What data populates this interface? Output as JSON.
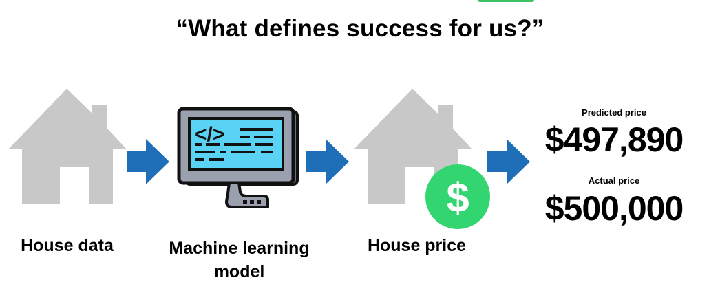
{
  "title": "“What defines success for us?”",
  "steps": [
    {
      "label": "House data",
      "icon": "house-icon"
    },
    {
      "label_line1": "Machine learning",
      "label_line2": "model",
      "icon": "computer-code-icon"
    },
    {
      "label": "House price",
      "icon": "house-price-icon",
      "badge": "$"
    }
  ],
  "prices": {
    "predicted_caption": "Predicted price",
    "predicted_value": "$497,890",
    "actual_caption": "Actual price",
    "actual_value": "$500,000"
  },
  "colors": {
    "arrow": "#1f6fb8",
    "house": "#c8c8c8",
    "screen": "#5ad2f4",
    "badge": "#32d570"
  }
}
